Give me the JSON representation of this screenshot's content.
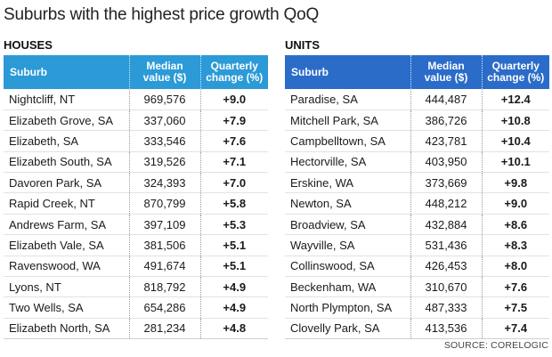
{
  "title": "Suburbs with the highest price growth QoQ",
  "columns": {
    "suburb": "Suburb",
    "median_line1": "Median",
    "median_line2": "value ($)",
    "change_line1": "Quarterly",
    "change_line2": "change (%)"
  },
  "houses": {
    "label": "HOUSES",
    "rows": [
      {
        "suburb": "Nightcliff, NT",
        "median": "969,576",
        "change": "+9.0"
      },
      {
        "suburb": "Elizabeth Grove, SA",
        "median": "337,060",
        "change": "+7.9"
      },
      {
        "suburb": "Elizabeth, SA",
        "median": "333,546",
        "change": "+7.6"
      },
      {
        "suburb": "Elizabeth South, SA",
        "median": "319,526",
        "change": "+7.1"
      },
      {
        "suburb": "Davoren Park, SA",
        "median": "324,393",
        "change": "+7.0"
      },
      {
        "suburb": "Rapid Creek, NT",
        "median": "870,799",
        "change": "+5.8"
      },
      {
        "suburb": "Andrews Farm, SA",
        "median": "397,109",
        "change": "+5.3"
      },
      {
        "suburb": "Elizabeth Vale, SA",
        "median": "381,506",
        "change": "+5.1"
      },
      {
        "suburb": "Ravenswood, WA",
        "median": "491,674",
        "change": "+5.1"
      },
      {
        "suburb": "Lyons, NT",
        "median": "818,792",
        "change": "+4.9"
      },
      {
        "suburb": "Two Wells, SA",
        "median": "654,286",
        "change": "+4.9"
      },
      {
        "suburb": "Elizabeth North, SA",
        "median": "281,234",
        "change": "+4.8"
      }
    ]
  },
  "units": {
    "label": "UNITS",
    "rows": [
      {
        "suburb": "Paradise, SA",
        "median": "444,487",
        "change": "+12.4"
      },
      {
        "suburb": "Mitchell Park, SA",
        "median": "386,726",
        "change": "+10.8"
      },
      {
        "suburb": "Campbelltown, SA",
        "median": "423,781",
        "change": "+10.4"
      },
      {
        "suburb": "Hectorville, SA",
        "median": "403,950",
        "change": "+10.1"
      },
      {
        "suburb": "Erskine, WA",
        "median": "373,669",
        "change": "+9.8"
      },
      {
        "suburb": "Newton, SA",
        "median": "448,212",
        "change": "+9.0"
      },
      {
        "suburb": "Broadview, SA",
        "median": "432,884",
        "change": "+8.6"
      },
      {
        "suburb": "Wayville, SA",
        "median": "531,436",
        "change": "+8.3"
      },
      {
        "suburb": "Collinswood, SA",
        "median": "426,453",
        "change": "+8.0"
      },
      {
        "suburb": "Beckenham, WA",
        "median": "310,670",
        "change": "+7.6"
      },
      {
        "suburb": "North Plympton, SA",
        "median": "487,333",
        "change": "+7.5"
      },
      {
        "suburb": "Clovelly Park, SA",
        "median": "413,536",
        "change": "+7.4"
      }
    ]
  },
  "source": "SOURCE: CORELOGIC",
  "colors": {
    "houses_header": "#2b9ad7",
    "units_header": "#2b6cc9"
  }
}
